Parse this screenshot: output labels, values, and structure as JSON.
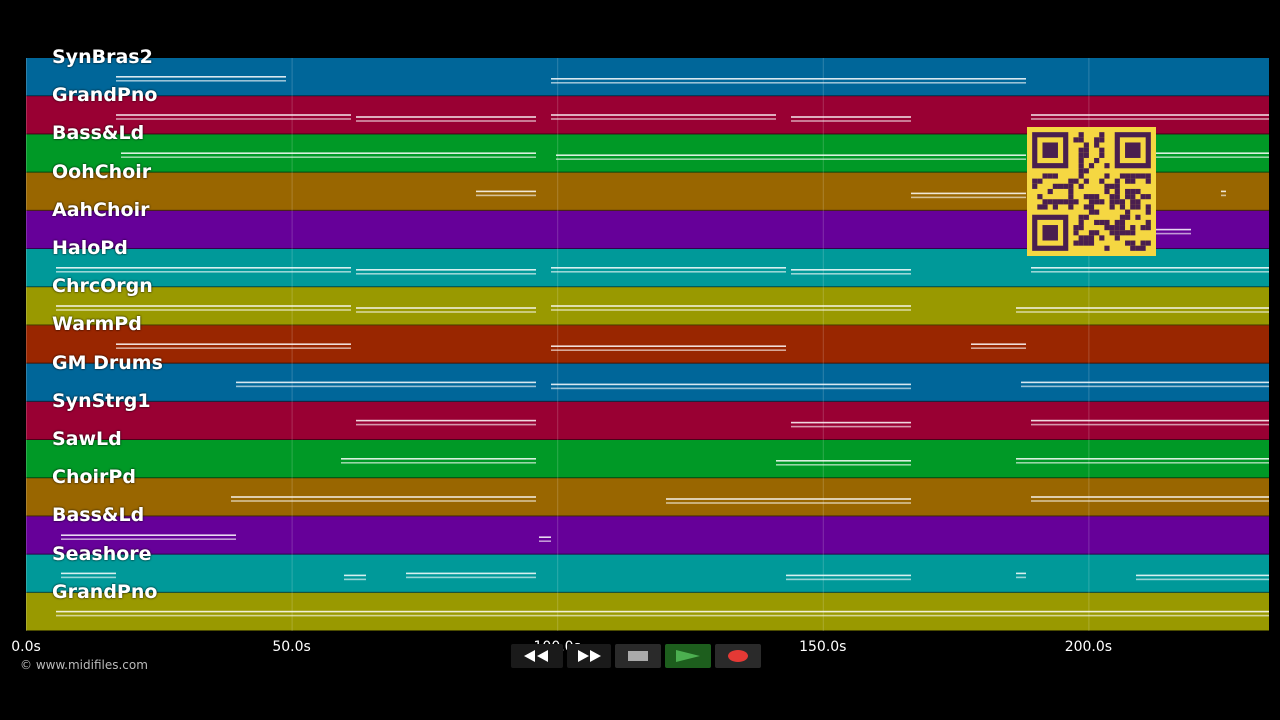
{
  "tracks": [
    {
      "name": "SynBras2",
      "color": "#006699"
    },
    {
      "name": "GrandPno",
      "color": "#990033"
    },
    {
      "name": "Bass&Ld",
      "color": "#009926"
    },
    {
      "name": "OohChoir",
      "color": "#996600"
    },
    {
      "name": "AahChoir",
      "color": "#660099"
    },
    {
      "name": "HaloPd",
      "color": "#009999"
    },
    {
      "name": "ChrcOrgn",
      "color": "#999900"
    },
    {
      "name": "WarmPd",
      "color": "#992600"
    },
    {
      "name": "GM Drums",
      "color": "#006699"
    },
    {
      "name": "SynStrg1",
      "color": "#990033"
    },
    {
      "name": "SawLd",
      "color": "#009926"
    },
    {
      "name": "ChoirPd",
      "color": "#996600"
    },
    {
      "name": "Bass&Ld",
      "color": "#660099"
    },
    {
      "name": "Seashore",
      "color": "#009999"
    },
    {
      "name": "GrandPno",
      "color": "#999900"
    }
  ],
  "timeline": {
    "ticks": [
      "0.0s",
      "50.0s",
      "100.0s",
      "150.0s",
      "200.0s"
    ],
    "tick_seconds": [
      0,
      50,
      100,
      150,
      200
    ],
    "max_seconds": 234
  },
  "copyright": "© www.midifiles.com",
  "transport": {
    "rewind_icon": "rewind-icon",
    "ffwd_icon": "fast-forward-icon",
    "stop_icon": "stop-icon",
    "play_icon": "play-icon",
    "record_icon": "record-icon",
    "play_color": "#4caf50",
    "record_color": "#e53935"
  },
  "qr_color": "#f5d742",
  "note_color": "#ffffff"
}
